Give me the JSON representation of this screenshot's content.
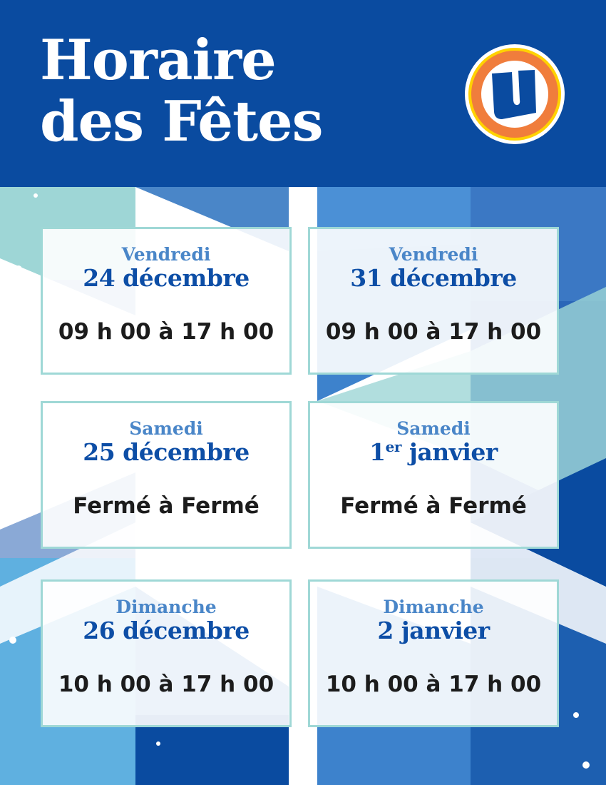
{
  "header": {
    "title_line1": "Horaire",
    "title_line2": "des Fêtes",
    "logo_letter": "U"
  },
  "colors": {
    "header_blue": "#0a4ba0",
    "day_blue": "#4a86c8",
    "date_blue": "#0d4ea6",
    "card_border": "#9fd8d6",
    "logo_orange": "#f07d3c",
    "logo_yellow": "#ffd200"
  },
  "schedule": [
    {
      "day": "Vendredi",
      "date": "24 décembre",
      "hours": "09 h 00 à 17 h 00"
    },
    {
      "day": "Vendredi",
      "date": "31 décembre",
      "hours": "09 h 00 à 17 h 00"
    },
    {
      "day": "Samedi",
      "date": "25 décembre",
      "hours": "Fermé à Fermé"
    },
    {
      "day": "Samedi",
      "date_num": "1",
      "date_sup": "er",
      "date_rest": " janvier",
      "hours": "Fermé à Fermé"
    },
    {
      "day": "Dimanche",
      "date": "26 décembre",
      "hours": "10 h 00 à 17 h 00"
    },
    {
      "day": "Dimanche",
      "date": "2 janvier",
      "hours": "10 h 00 à 17 h 00"
    }
  ]
}
